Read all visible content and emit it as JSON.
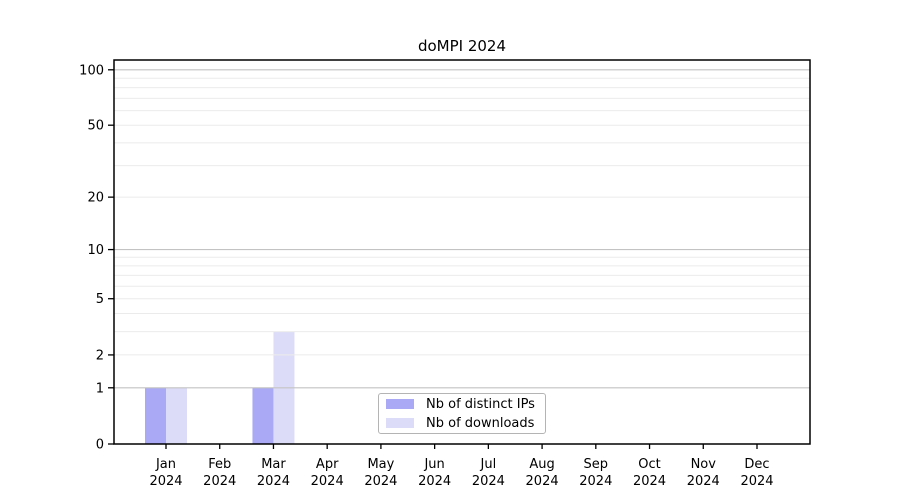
{
  "title": "doMPI 2024",
  "colors": {
    "background": "#ffffff",
    "bar_distinct_ips": "#a9a9f5",
    "bar_downloads": "#dcdcf8",
    "grid_major": "#c3c3c3",
    "grid_minor": "#ebebeb",
    "axis": "#000000",
    "text": "#000000",
    "legend_border": "#b4b4b4"
  },
  "chart_data": {
    "type": "bar",
    "title": "doMPI 2024",
    "categories": [
      {
        "label": "Jan",
        "sub": "2024"
      },
      {
        "label": "Feb",
        "sub": "2024"
      },
      {
        "label": "Mar",
        "sub": "2024"
      },
      {
        "label": "Apr",
        "sub": "2024"
      },
      {
        "label": "May",
        "sub": "2024"
      },
      {
        "label": "Jun",
        "sub": "2024"
      },
      {
        "label": "Jul",
        "sub": "2024"
      },
      {
        "label": "Aug",
        "sub": "2024"
      },
      {
        "label": "Sep",
        "sub": "2024"
      },
      {
        "label": "Oct",
        "sub": "2024"
      },
      {
        "label": "Nov",
        "sub": "2024"
      },
      {
        "label": "Dec",
        "sub": "2024"
      }
    ],
    "series": [
      {
        "name": "Nb of distinct IPs",
        "color": "#a9a9f5",
        "values": [
          1,
          0,
          1,
          0,
          0,
          0,
          0,
          0,
          0,
          0,
          0,
          0
        ]
      },
      {
        "name": "Nb of downloads",
        "color": "#dcdcf8",
        "values": [
          1,
          0,
          3,
          0,
          0,
          0,
          0,
          0,
          0,
          0,
          0,
          0
        ]
      }
    ],
    "xlabel": "",
    "ylabel": "",
    "y_scale": "log10(1+x)",
    "y_ticks": [
      0,
      1,
      2,
      5,
      10,
      20,
      50,
      100
    ],
    "ylim": [
      0,
      113
    ],
    "grid": {
      "on": true,
      "major": [
        1,
        10,
        100
      ],
      "minor": [
        2,
        3,
        4,
        5,
        6,
        7,
        8,
        9,
        20,
        30,
        40,
        50,
        60,
        70,
        80,
        90
      ],
      "lines_above_bars": true
    },
    "legend": {
      "position": "inside-bottom-center",
      "entries": [
        "Nb of distinct IPs",
        "Nb of downloads"
      ]
    }
  }
}
